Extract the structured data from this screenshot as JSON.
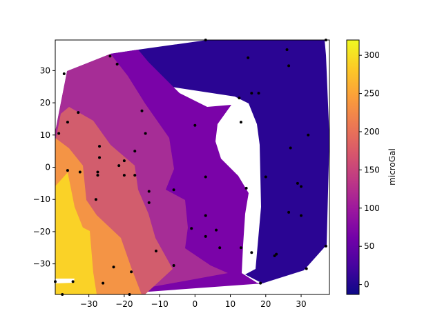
{
  "chart_data": {
    "type": "contour",
    "title": "",
    "xlabel": "",
    "ylabel": "",
    "xlim": [
      -39.5,
      38.0
    ],
    "ylim": [
      -39.5,
      39.5
    ],
    "x_ticks": [
      -30,
      -20,
      -10,
      0,
      10,
      20,
      30
    ],
    "x_tick_labels": [
      "−30",
      "−20",
      "−10",
      "0",
      "10",
      "20",
      "30"
    ],
    "y_ticks": [
      -30,
      -20,
      -10,
      0,
      10,
      20,
      30
    ],
    "y_tick_labels": [
      "−30",
      "−20",
      "−10",
      "0",
      "10",
      "20",
      "30"
    ],
    "colormap": "plasma",
    "colorbar": {
      "label": "microGal",
      "range": [
        -13,
        320
      ],
      "ticks": [
        0,
        50,
        100,
        150,
        200,
        250,
        300
      ],
      "tick_labels": [
        "0",
        "50",
        "100",
        "150",
        "200",
        "250",
        "300"
      ]
    },
    "levels": [
      {
        "range": [
          -13,
          50
        ],
        "color": "#2a0593"
      },
      {
        "range": [
          50,
          100
        ],
        "color": "#7a03a8"
      },
      {
        "range": [
          100,
          150
        ],
        "color": "#a62d96"
      },
      {
        "range": [
          150,
          200
        ],
        "color": "#d25d6d"
      },
      {
        "range": [
          200,
          250
        ],
        "color": "#f49445"
      },
      {
        "range": [
          250,
          320
        ],
        "color": "#fad227"
      }
    ],
    "grid": false,
    "stations": [
      {
        "x": -37,
        "y": 29
      },
      {
        "x": -24,
        "y": 34.5
      },
      {
        "x": -22,
        "y": 32
      },
      {
        "x": 3,
        "y": 39.5
      },
      {
        "x": 37,
        "y": 39.5
      },
      {
        "x": 15,
        "y": 34
      },
      {
        "x": 26,
        "y": 36.5
      },
      {
        "x": 26.5,
        "y": 31.5
      },
      {
        "x": 16,
        "y": 23
      },
      {
        "x": 18,
        "y": 23
      },
      {
        "x": 12.5,
        "y": 21.5
      },
      {
        "x": -36,
        "y": 14
      },
      {
        "x": -33,
        "y": 17
      },
      {
        "x": -15,
        "y": 17.5
      },
      {
        "x": 0,
        "y": 13
      },
      {
        "x": 13,
        "y": 14
      },
      {
        "x": -38.5,
        "y": 10.5
      },
      {
        "x": -14,
        "y": 10.5
      },
      {
        "x": 32,
        "y": 10
      },
      {
        "x": 27,
        "y": 6
      },
      {
        "x": -27,
        "y": 6.5
      },
      {
        "x": -17,
        "y": 5
      },
      {
        "x": -27,
        "y": 3
      },
      {
        "x": -20,
        "y": 2
      },
      {
        "x": -36,
        "y": -1
      },
      {
        "x": -21.5,
        "y": 0.5
      },
      {
        "x": -32.5,
        "y": -1.5
      },
      {
        "x": -27.5,
        "y": -1.5
      },
      {
        "x": -27.5,
        "y": -2.5
      },
      {
        "x": -20,
        "y": -2.5
      },
      {
        "x": -17,
        "y": -2.5
      },
      {
        "x": 3,
        "y": -3
      },
      {
        "x": 20,
        "y": -3
      },
      {
        "x": 29,
        "y": -5
      },
      {
        "x": 30,
        "y": -6
      },
      {
        "x": 14.5,
        "y": -6.5
      },
      {
        "x": -6,
        "y": -7
      },
      {
        "x": -13,
        "y": -7.5
      },
      {
        "x": -28,
        "y": -10
      },
      {
        "x": -13,
        "y": -11
      },
      {
        "x": 26.5,
        "y": -14
      },
      {
        "x": 3,
        "y": -15
      },
      {
        "x": 30,
        "y": -15
      },
      {
        "x": -1,
        "y": -19
      },
      {
        "x": 6,
        "y": -19.5
      },
      {
        "x": 3,
        "y": -21.5
      },
      {
        "x": 7,
        "y": -25
      },
      {
        "x": 13,
        "y": -25
      },
      {
        "x": -11,
        "y": -26
      },
      {
        "x": 16,
        "y": -26.5
      },
      {
        "x": 22.5,
        "y": -27.5
      },
      {
        "x": 23,
        "y": -27
      },
      {
        "x": 37,
        "y": -24.5
      },
      {
        "x": -23,
        "y": -31
      },
      {
        "x": -6,
        "y": -30.5
      },
      {
        "x": 31.5,
        "y": -31.5
      },
      {
        "x": -18,
        "y": -32.5
      },
      {
        "x": -39.5,
        "y": -35.5
      },
      {
        "x": -34.5,
        "y": -35.5
      },
      {
        "x": -26,
        "y": -36
      },
      {
        "x": 18.5,
        "y": -36
      },
      {
        "x": -37.5,
        "y": -39.5
      },
      {
        "x": -18.5,
        "y": -39.5
      }
    ]
  }
}
